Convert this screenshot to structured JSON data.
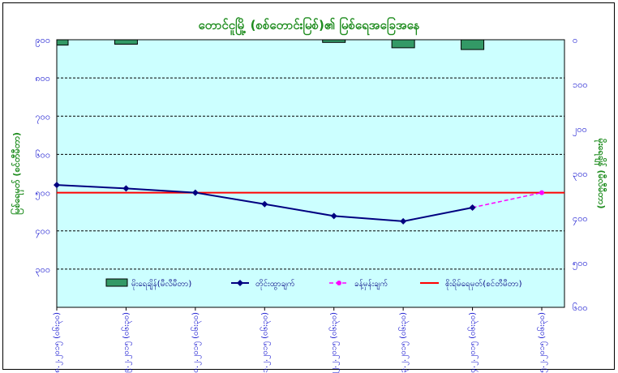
{
  "chart_data": {
    "type": "bar+line",
    "title": "တောင်ငူမြို့ (စစ်တောင်းမြစ်)၏ မြစ်ရေအခြေအနေ",
    "ylabel_left": "မြစ်ရေမှတ် (စင်တီမီတာ)",
    "ylabel_right": "မိုးရေချိန် (မီလီမီတာ)",
    "left_axis": {
      "range": [
        200,
        900
      ],
      "inverted": false,
      "ticks": [
        "၉၀၀",
        "၈၀၀",
        "၇၀၀",
        "၆၀၀",
        "၅၀၀",
        "၄၀၀",
        "၃၀၀"
      ],
      "tick_values": [
        900,
        800,
        700,
        600,
        500,
        400,
        300
      ]
    },
    "right_axis": {
      "range": [
        0,
        600
      ],
      "inverted": true,
      "ticks": [
        "၀",
        "၁၀၀",
        "၂၀၀",
        "၃၀၀",
        "၄၀၀",
        "၅၀၀",
        "၆၀၀"
      ],
      "tick_values": [
        0,
        100,
        200,
        300,
        400,
        500,
        600
      ]
    },
    "categories": [
      "၁၈.၂.၂၀၁၅ (၀၆း၃၀)",
      "၁၉.၂.၂၀၁၅ (၀၆း၃၀)",
      "၂၀.၂.၂၀၁၅ (၀၆း၃၀)",
      "၂၁.၂.၂၀၁၅ (၀၆း၃၀)",
      "၂၂.၂.၂၀၁၅ (၀၆း၃၀)",
      "၂၃.၂.၂၀၁၅ (၀၆း၃၀)",
      "၂၄.၂.၂၀၁၅ (၀၆း၃၀)",
      "၂၅.၂.၂၀၁၅ (၀၆း၃၀)"
    ],
    "series": [
      {
        "name": "မိုးရေချိန်(မီလီမီတာ)",
        "type": "bar",
        "axis": "right",
        "color": "#339966",
        "values": [
          12,
          10,
          0,
          0,
          6,
          18,
          22,
          0
        ]
      },
      {
        "name": "တိုင်းထွာချက်",
        "type": "line",
        "axis": "left",
        "color": "#000080",
        "marker": "diamond",
        "values": [
          520,
          511,
          500,
          470,
          439,
          425,
          461,
          null
        ]
      },
      {
        "name": "ခန့်မှန်းချက်",
        "type": "line",
        "axis": "left",
        "color": "#ff00ff",
        "dashed": true,
        "marker": "circle",
        "values": [
          null,
          null,
          null,
          null,
          null,
          null,
          461,
          500
        ]
      },
      {
        "name": "စိုးရိမ်ရေမှတ်(စင်တီမီတာ)",
        "type": "hline",
        "axis": "left",
        "color": "#ff0000",
        "value": 500
      }
    ],
    "plot_background": "#ccffff",
    "grid": "horizontal dashed",
    "legend_position": "bottom inside plot"
  }
}
